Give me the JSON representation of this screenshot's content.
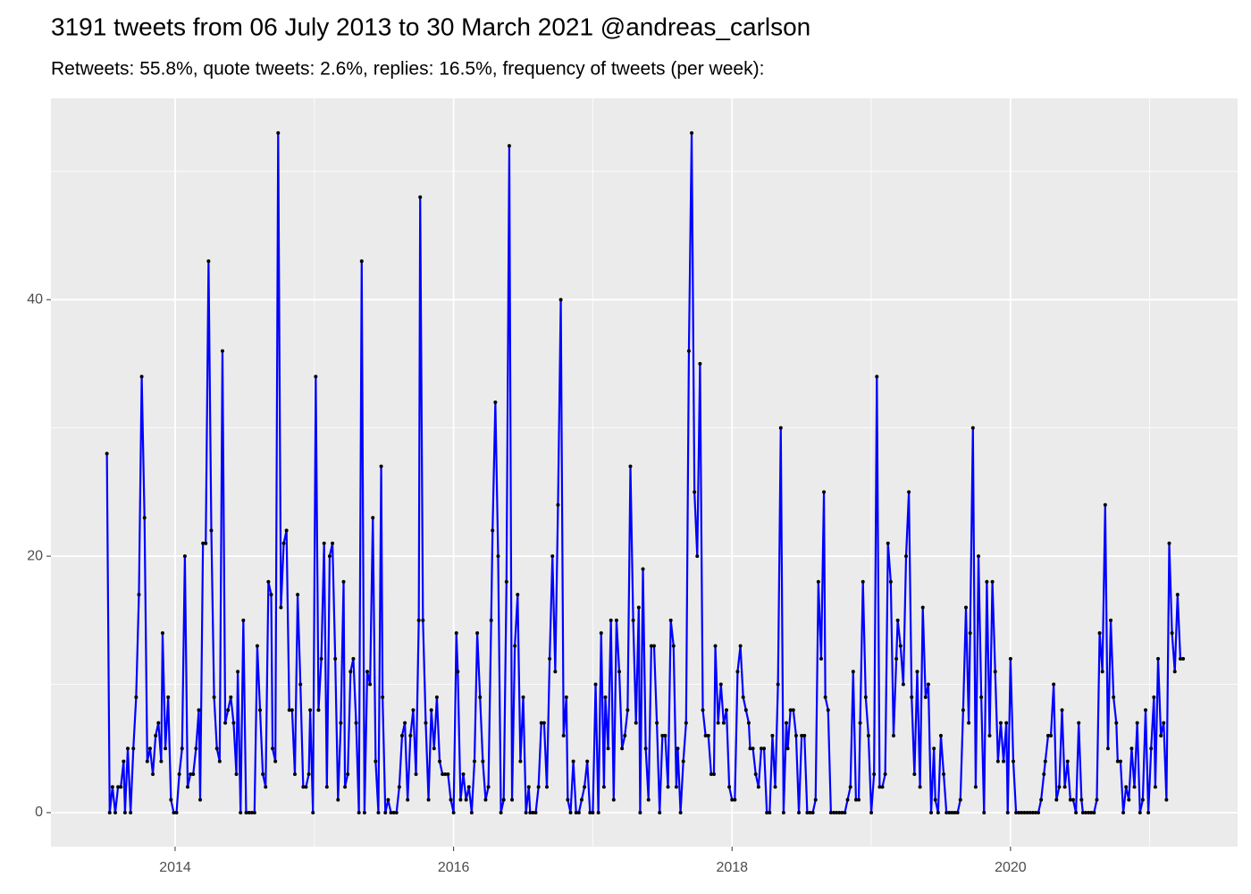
{
  "chart_data": {
    "type": "line",
    "title": "3191 tweets from 06 July 2013 to 30 March 2021 @andreas_carlson",
    "subtitle": "Retweets: 55.8%, quote tweets: 2.6%, replies: 16.5%, frequency of tweets (per week):",
    "xlim": [
      2013.108,
      2021.631
    ],
    "ylim": [
      -2.65,
      55.7
    ],
    "xticks": [
      2014,
      2016,
      2018,
      2020
    ],
    "yticks": [
      0,
      20,
      40
    ],
    "xminor": [
      2015,
      2017,
      2019,
      2021
    ],
    "yminor": [
      10,
      30,
      50
    ],
    "grid": true,
    "line_color": "#0000ff",
    "point_color": "#000000",
    "x": [
      2013.51,
      2013.53,
      2013.55,
      2013.57,
      2013.59,
      2013.61,
      2013.63,
      2013.64,
      2013.66,
      2013.68,
      2013.7,
      2013.72,
      2013.74,
      2013.76,
      2013.78,
      2013.8,
      2013.82,
      2013.84,
      2013.86,
      2013.88,
      2013.9,
      2013.91,
      2013.93,
      2013.95,
      2013.97,
      2013.99,
      2014.01,
      2014.03,
      2014.05,
      2014.07,
      2014.09,
      2014.11,
      2014.13,
      2014.15,
      2014.17,
      2014.18,
      2014.2,
      2014.22,
      2014.24,
      2014.26,
      2014.28,
      2014.3,
      2014.32,
      2014.34,
      2014.36,
      2014.38,
      2014.4,
      2014.42,
      2014.44,
      2014.45,
      2014.47,
      2014.49,
      2014.51,
      2014.53,
      2014.55,
      2014.57,
      2014.59,
      2014.61,
      2014.63,
      2014.65,
      2014.67,
      2014.69,
      2014.7,
      2014.72,
      2014.74,
      2014.76,
      2014.78,
      2014.8,
      2014.82,
      2014.84,
      2014.86,
      2014.88,
      2014.9,
      2014.92,
      2014.94,
      2014.96,
      2014.97,
      2014.99,
      2015.01,
      2015.03,
      2015.05,
      2015.07,
      2015.09,
      2015.11,
      2015.13,
      2015.15,
      2015.17,
      2015.19,
      2015.21,
      2015.22,
      2015.24,
      2015.26,
      2015.28,
      2015.3,
      2015.32,
      2015.34,
      2015.36,
      2015.38,
      2015.4,
      2015.42,
      2015.44,
      2015.46,
      2015.48,
      2015.49,
      2015.51,
      2015.53,
      2015.55,
      2015.57,
      2015.59,
      2015.61,
      2015.63,
      2015.65,
      2015.67,
      2015.69,
      2015.71,
      2015.73,
      2015.75,
      2015.76,
      2015.78,
      2015.8,
      2015.82,
      2015.84,
      2015.86,
      2015.88,
      2015.9,
      2015.92,
      2015.94,
      2015.96,
      2015.98,
      2016.0,
      2016.02,
      2016.03,
      2016.05,
      2016.07,
      2016.09,
      2016.11,
      2016.13,
      2016.15,
      2016.17,
      2016.19,
      2016.21,
      2016.23,
      2016.25,
      2016.27,
      2016.28,
      2016.3,
      2016.32,
      2016.34,
      2016.36,
      2016.38,
      2016.4,
      2016.42,
      2016.44,
      2016.46,
      2016.48,
      2016.5,
      2016.52,
      2016.54,
      2016.55,
      2016.57,
      2016.59,
      2016.61,
      2016.63,
      2016.65,
      2016.67,
      2016.69,
      2016.71,
      2016.73,
      2016.75,
      2016.77,
      2016.79,
      2016.81,
      2016.82,
      2016.84,
      2016.86,
      2016.88,
      2016.9,
      2016.92,
      2016.94,
      2016.96,
      2016.98,
      2017.0,
      2017.02,
      2017.04,
      2017.06,
      2017.08,
      2017.09,
      2017.11,
      2017.13,
      2017.15,
      2017.17,
      2017.19,
      2017.21,
      2017.23,
      2017.25,
      2017.27,
      2017.29,
      2017.31,
      2017.33,
      2017.34,
      2017.36,
      2017.38,
      2017.4,
      2017.42,
      2017.44,
      2017.46,
      2017.48,
      2017.5,
      2017.52,
      2017.54,
      2017.56,
      2017.58,
      2017.6,
      2017.61,
      2017.63,
      2017.65,
      2017.67,
      2017.69,
      2017.71,
      2017.73,
      2017.75,
      2017.77,
      2017.79,
      2017.81,
      2017.83,
      2017.85,
      2017.87,
      2017.88,
      2017.9,
      2017.92,
      2017.94,
      2017.96,
      2017.98,
      2018.0,
      2018.02,
      2018.04,
      2018.06,
      2018.08,
      2018.1,
      2018.12,
      2018.13,
      2018.15,
      2018.17,
      2018.19,
      2018.21,
      2018.23,
      2018.25,
      2018.27,
      2018.29,
      2018.31,
      2018.33,
      2018.35,
      2018.37,
      2018.39,
      2018.4,
      2018.42,
      2018.44,
      2018.46,
      2018.48,
      2018.5,
      2018.52,
      2018.54,
      2018.56,
      2018.58,
      2018.6,
      2018.62,
      2018.64,
      2018.66,
      2018.67,
      2018.69,
      2018.71,
      2018.73,
      2018.75,
      2018.77,
      2018.79,
      2018.81,
      2018.83,
      2018.85,
      2018.87,
      2018.89,
      2018.91,
      2018.92,
      2018.94,
      2018.96,
      2018.98,
      2019.0,
      2019.02,
      2019.04,
      2019.06,
      2019.08,
      2019.1,
      2019.12,
      2019.14,
      2019.16,
      2019.18,
      2019.19,
      2019.21,
      2019.23,
      2019.25,
      2019.27,
      2019.29,
      2019.31,
      2019.33,
      2019.35,
      2019.37,
      2019.39,
      2019.41,
      2019.43,
      2019.45,
      2019.46,
      2019.48,
      2019.5,
      2019.52,
      2019.54,
      2019.56,
      2019.58,
      2019.6,
      2019.62,
      2019.64,
      2019.66,
      2019.68,
      2019.7,
      2019.71,
      2019.73,
      2019.75,
      2019.77,
      2019.79,
      2019.81,
      2019.83,
      2019.85,
      2019.87,
      2019.89,
      2019.91,
      2019.93,
      2019.95,
      2019.97,
      2019.98,
      2020.0,
      2020.02,
      2020.04,
      2020.06,
      2020.08,
      2020.1,
      2020.12,
      2020.14,
      2020.16,
      2020.18,
      2020.2,
      2020.22,
      2020.24,
      2020.25,
      2020.27,
      2020.29,
      2020.31,
      2020.33,
      2020.35,
      2020.37,
      2020.39,
      2020.41,
      2020.43,
      2020.45,
      2020.47,
      2020.49,
      2020.51,
      2020.52,
      2020.54,
      2020.56,
      2020.58,
      2020.6,
      2020.62,
      2020.64,
      2020.66,
      2020.68,
      2020.7,
      2020.72,
      2020.74,
      2020.76,
      2020.77,
      2020.79,
      2020.81,
      2020.83,
      2020.85,
      2020.87,
      2020.89,
      2020.91,
      2020.93,
      2020.95,
      2020.97,
      2020.99,
      2021.01,
      2021.03,
      2021.04,
      2021.06,
      2021.08,
      2021.1,
      2021.12,
      2021.14,
      2021.16,
      2021.18,
      2021.2,
      2021.22,
      2021.24
    ],
    "values": [
      28,
      0,
      2,
      0,
      2,
      2,
      4,
      0,
      5,
      0,
      5,
      9,
      17,
      34,
      23,
      4,
      5,
      3,
      6,
      7,
      4,
      14,
      5,
      9,
      1,
      0,
      0,
      3,
      5,
      20,
      2,
      3,
      3,
      5,
      8,
      1,
      21,
      21,
      43,
      22,
      9,
      5,
      4,
      36,
      7,
      8,
      9,
      7,
      3,
      11,
      0,
      15,
      0,
      0,
      0,
      0,
      13,
      8,
      3,
      2,
      18,
      17,
      5,
      4,
      53,
      16,
      21,
      22,
      8,
      8,
      3,
      17,
      10,
      2,
      2,
      3,
      8,
      0,
      34,
      8,
      12,
      21,
      2,
      20,
      21,
      12,
      1,
      7,
      18,
      2,
      3,
      11,
      12,
      7,
      0,
      43,
      0,
      11,
      10,
      23,
      4,
      0,
      27,
      9,
      0,
      1,
      0,
      0,
      0,
      2,
      6,
      7,
      1,
      6,
      8,
      3,
      15,
      48,
      15,
      7,
      1,
      8,
      5,
      9,
      4,
      3,
      3,
      3,
      1,
      0,
      14,
      11,
      1,
      3,
      1,
      2,
      0,
      4,
      14,
      9,
      4,
      1,
      2,
      15,
      22,
      32,
      20,
      0,
      1,
      18,
      52,
      1,
      13,
      17,
      4,
      9,
      0,
      2,
      0,
      0,
      0,
      2,
      7,
      7,
      2,
      12,
      20,
      11,
      24,
      40,
      6,
      9,
      1,
      0,
      4,
      0,
      0,
      1,
      2,
      4,
      0,
      0,
      10,
      0,
      14,
      2,
      9,
      5,
      15,
      1,
      15,
      11,
      5,
      6,
      8,
      27,
      15,
      7,
      16,
      0,
      19,
      5,
      1,
      13,
      13,
      7,
      0,
      6,
      6,
      2,
      15,
      13,
      2,
      5,
      0,
      4,
      7,
      36,
      53,
      25,
      20,
      35,
      8,
      6,
      6,
      3,
      3,
      13,
      7,
      10,
      7,
      8,
      2,
      1,
      1,
      11,
      13,
      9,
      8,
      7,
      5,
      5,
      3,
      2,
      5,
      5,
      0,
      0,
      6,
      2,
      10,
      30,
      0,
      7,
      5,
      8,
      8,
      6,
      0,
      6,
      6,
      0,
      0,
      0,
      1,
      18,
      12,
      25,
      9,
      8,
      0,
      0,
      0,
      0,
      0,
      0,
      1,
      2,
      11,
      1,
      1,
      7,
      18,
      9,
      6,
      0,
      3,
      34,
      2,
      2,
      3,
      21,
      18,
      6,
      12,
      15,
      13,
      10,
      20,
      25,
      9,
      3,
      11,
      2,
      16,
      9,
      10,
      0,
      5,
      1,
      0,
      6,
      3,
      0,
      0,
      0,
      0,
      0,
      1,
      8,
      16,
      7,
      14,
      30,
      2,
      20,
      9,
      0,
      18,
      6,
      18,
      11,
      4,
      7,
      4,
      7,
      0,
      12,
      4,
      0,
      0,
      0,
      0,
      0,
      0,
      0,
      0,
      0,
      1,
      3,
      4,
      6,
      6,
      10,
      1,
      2,
      8,
      2,
      4,
      1,
      1,
      0,
      7,
      1,
      0,
      0,
      0,
      0,
      0,
      1,
      14,
      11,
      24,
      5,
      15,
      9,
      7,
      4,
      4,
      0,
      2,
      1,
      5,
      2,
      7,
      0,
      1,
      8,
      0,
      5,
      9,
      2,
      12,
      6,
      7,
      1,
      21,
      14,
      11,
      17,
      12,
      12
    ]
  }
}
